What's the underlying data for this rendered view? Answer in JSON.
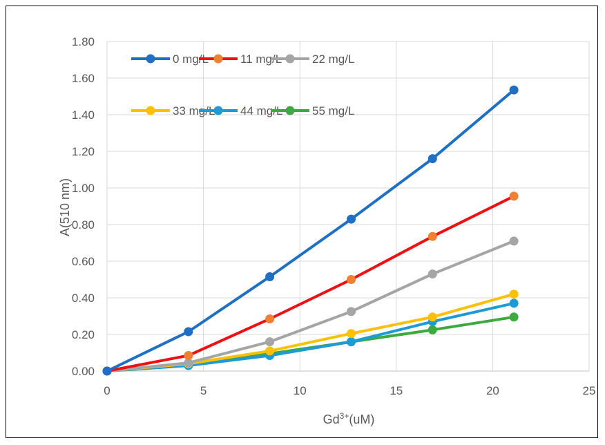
{
  "chart_data": {
    "type": "line",
    "xlabel_main": "Gd",
    "xlabel_sup": "3+",
    "xlabel_tail": "(uM)",
    "ylabel": "A(510 nm)",
    "xlim": [
      0,
      25
    ],
    "ylim": [
      0,
      1.8
    ],
    "x_ticks": [
      0,
      5,
      10,
      15,
      20,
      25
    ],
    "y_ticks": [
      0,
      0.2,
      0.4,
      0.6,
      0.8,
      1.0,
      1.2,
      1.4,
      1.6,
      1.8
    ],
    "x_tick_labels": [
      "0",
      "5",
      "10",
      "15",
      "20",
      "25"
    ],
    "y_tick_labels": [
      "0.00",
      "0.20",
      "0.40",
      "0.60",
      "0.80",
      "1.00",
      "1.20",
      "1.40",
      "1.60",
      "1.80"
    ],
    "grid": true,
    "legend_position": "top-left",
    "x": [
      0,
      4.22,
      8.44,
      12.66,
      16.88,
      21.1
    ],
    "series": [
      {
        "name": "0 mg/L",
        "values": [
          0.0,
          0.215,
          0.515,
          0.83,
          1.16,
          1.535
        ],
        "line_color": "#1F6FC5",
        "marker_color": "#1F6FC5"
      },
      {
        "name": "11 mg/L",
        "values": [
          0.0,
          0.085,
          0.285,
          0.5,
          0.735,
          0.955
        ],
        "line_color": "#EE1111",
        "marker_color": "#F28032"
      },
      {
        "name": "22 mg/L",
        "values": [
          0.0,
          0.045,
          0.16,
          0.325,
          0.53,
          0.71
        ],
        "line_color": "#A5A5A5",
        "marker_color": "#A5A5A5"
      },
      {
        "name": "33 mg/L",
        "values": [
          0.0,
          0.04,
          0.11,
          0.205,
          0.295,
          0.42
        ],
        "line_color": "#FFC000",
        "marker_color": "#FFC000"
      },
      {
        "name": "44 mg/L",
        "values": [
          0.0,
          0.03,
          0.085,
          0.16,
          0.27,
          0.37
        ],
        "line_color": "#1E9BD7",
        "marker_color": "#1E9BD7"
      },
      {
        "name": "55 mg/L",
        "values": [
          0.0,
          0.03,
          0.095,
          0.16,
          0.225,
          0.295
        ],
        "line_color": "#3DAA3F",
        "marker_color": "#3DAA3F"
      }
    ]
  }
}
